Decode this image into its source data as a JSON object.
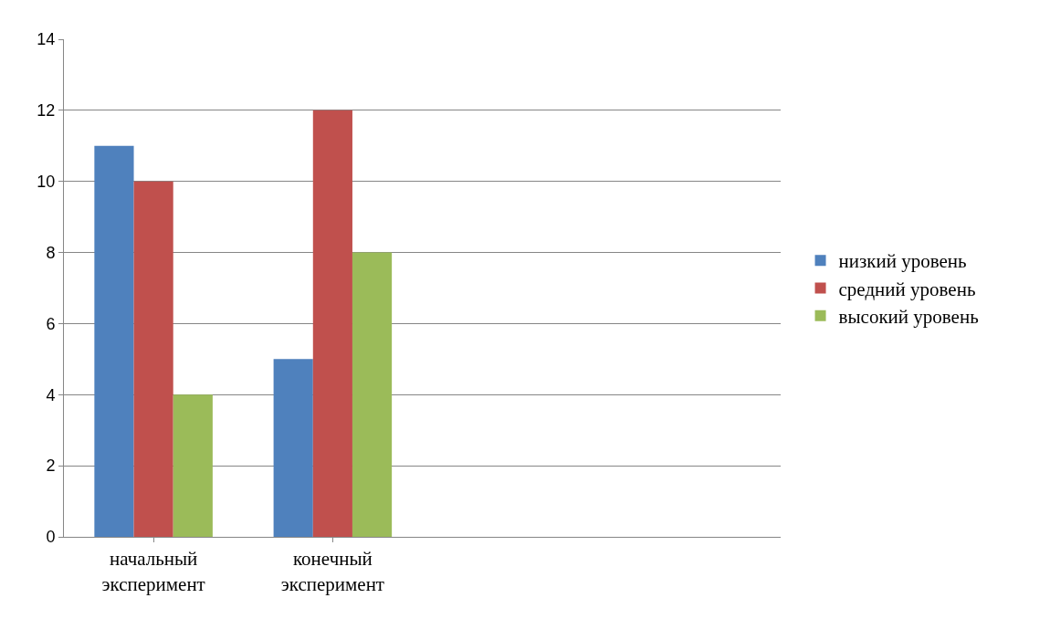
{
  "chart_data": {
    "type": "bar",
    "categories": [
      "начальный эксперимент",
      "конечный эксперимент",
      null,
      null
    ],
    "series": [
      {
        "name": "низкий уровень",
        "color": "#4f81bd",
        "values": [
          11,
          5,
          null,
          null
        ]
      },
      {
        "name": "средний уровень",
        "color": "#c0504d",
        "values": [
          10,
          12,
          null,
          null
        ]
      },
      {
        "name": "высокий уровень",
        "color": "#9bbb59",
        "values": [
          4,
          8,
          null,
          null
        ]
      }
    ],
    "ylim": [
      0,
      14
    ],
    "yticks": [
      0,
      2,
      4,
      6,
      8,
      10,
      12,
      14
    ],
    "grid": "y",
    "legend": "right"
  }
}
